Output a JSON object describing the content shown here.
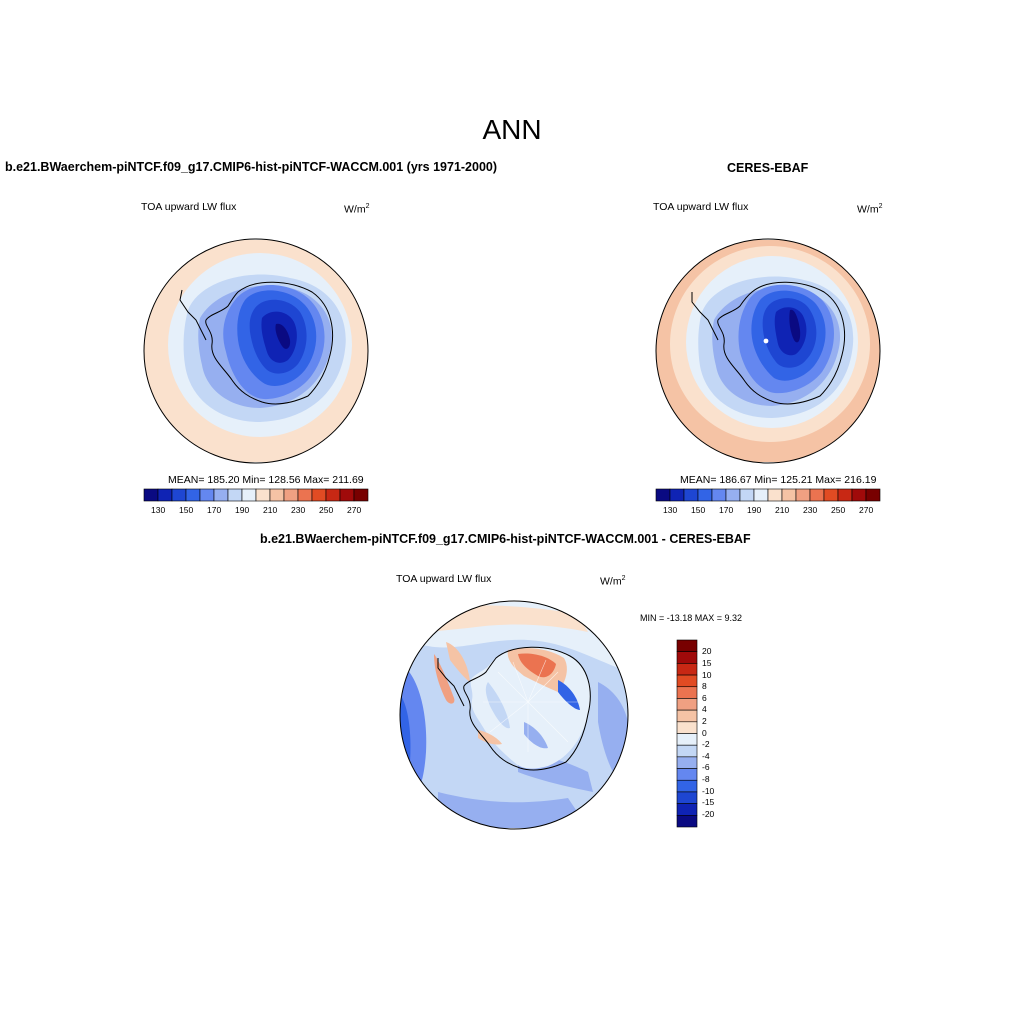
{
  "page": {
    "title": "ANN"
  },
  "panels": {
    "model": {
      "title": "b.e21.BWaerchem-piNTCF.f09_g17.CMIP6-hist-piNTCF-WACCM.001 (yrs 1971-2000)",
      "variable": "TOA upward LW flux",
      "units": "W/m",
      "units_sup": "2",
      "stats": "MEAN= 185.20  Min= 128.56  Max= 211.69"
    },
    "obs": {
      "title": "CERES-EBAF",
      "variable": "TOA upward LW flux",
      "units": "W/m",
      "units_sup": "2",
      "stats": "MEAN= 186.67  Min= 125.21  Max= 216.19"
    },
    "diff": {
      "title": "b.e21.BWaerchem-piNTCF.f09_g17.CMIP6-hist-piNTCF-WACCM.001 - CERES-EBAF",
      "variable": "TOA upward LW flux",
      "units": "W/m",
      "units_sup": "2",
      "stats": "MIN = -13.18 MAX =   9.32"
    }
  },
  "colorbars": {
    "abs": {
      "labels": [
        "130",
        "150",
        "170",
        "190",
        "210",
        "230",
        "250",
        "270"
      ],
      "colors": [
        "#0a0a82",
        "#0f23b4",
        "#1e46d2",
        "#3264e6",
        "#6487f0",
        "#96aff0",
        "#c3d7f5",
        "#e6f0fa",
        "#fae1cd",
        "#f5c3a5",
        "#f0a082",
        "#eb7350",
        "#e14b23",
        "#c82814",
        "#a00a0a",
        "#780000"
      ]
    },
    "diff": {
      "labels": [
        "20",
        "15",
        "10",
        "8",
        "6",
        "4",
        "2",
        "0",
        "-2",
        "-4",
        "-6",
        "-8",
        "-10",
        "-15",
        "-20"
      ],
      "colors": [
        "#780000",
        "#a00a0a",
        "#c82814",
        "#e14b23",
        "#eb7350",
        "#f0a082",
        "#f5c3a5",
        "#fae1cd",
        "#e6f0fa",
        "#c3d7f5",
        "#96aff0",
        "#6487f0",
        "#3264e6",
        "#1e46d2",
        "#0f23b4",
        "#0a0a82"
      ]
    }
  }
}
